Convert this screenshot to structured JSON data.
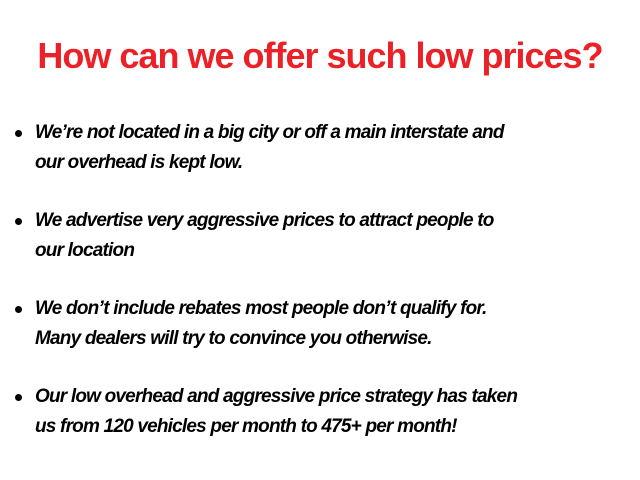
{
  "title": "How can we offer such low prices?",
  "colors": {
    "title": "#ec2027",
    "text": "#000000"
  },
  "bullets": [
    {
      "lines": [
        "We’re not located in a big city or off a main interstate and",
        "our overhead is kept low."
      ]
    },
    {
      "lines": [
        "We advertise very aggressive prices to attract people to",
        "our location"
      ]
    },
    {
      "lines": [
        "We don’t include rebates most people don’t qualify for.",
        "Many dealers will try to convince you otherwise."
      ]
    },
    {
      "lines": [
        "Our low overhead and aggressive price strategy has taken",
        "us from 120 vehicles per month to 475+ per month!"
      ]
    }
  ]
}
